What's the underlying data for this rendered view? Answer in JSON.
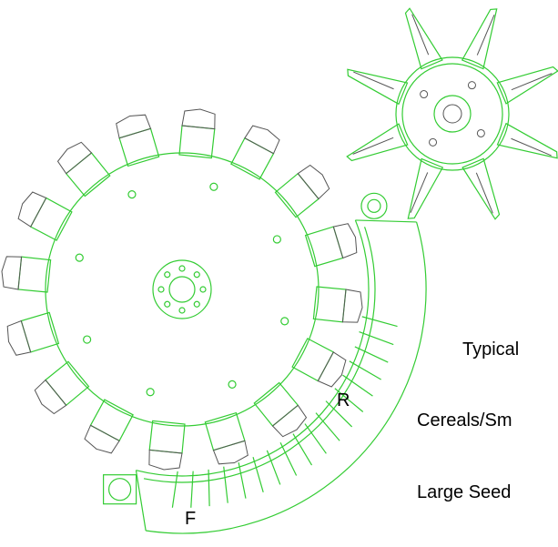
{
  "labels": {
    "rear": "R",
    "front": "F"
  },
  "settings": {
    "heading": "Typical",
    "rows": [
      "Cereals/Sm",
      "Large Seed"
    ]
  }
}
